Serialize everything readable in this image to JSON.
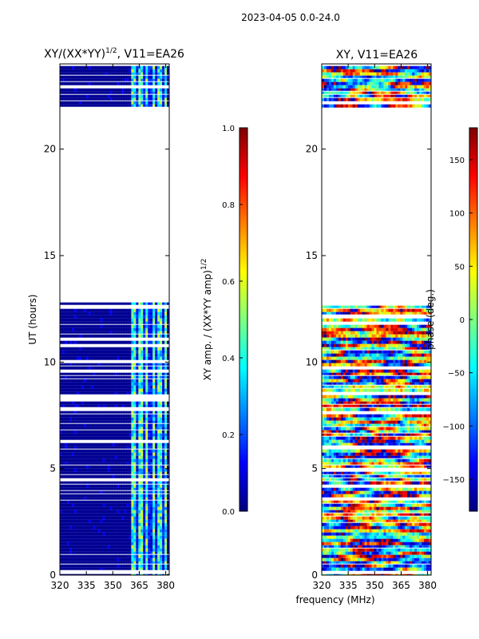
{
  "suptitle": "2023-04-05 0.0-24.0",
  "colormap": [
    "#00007f",
    "#0000ff",
    "#007fff",
    "#00ffff",
    "#7fff7f",
    "#ffff00",
    "#ff7f00",
    "#ff0000",
    "#7f0000"
  ],
  "chart_data": [
    {
      "type": "heatmap",
      "title_main": "XY/(XX*YY)",
      "title_sup": "1/2",
      "title_rest": ", V11=EA26",
      "xlabel": "",
      "ylabel": "UT (hours)",
      "xlim": [
        320,
        382
      ],
      "ylim": [
        0,
        24
      ],
      "xticks": [
        320,
        335,
        350,
        365,
        380
      ],
      "yticks": [
        0,
        5,
        10,
        15,
        20
      ],
      "colorbar": {
        "label": "XY amp. / (XX*YY amp)",
        "label_sup": "1/2",
        "range": [
          0.0,
          1.0
        ],
        "ticks": [
          0.0,
          0.2,
          0.4,
          0.6,
          0.8,
          1.0
        ],
        "tick_labels": [
          "0.0",
          "0.2",
          "0.4",
          "0.6",
          "0.8",
          "1.0"
        ]
      },
      "data_segments_hours": [
        [
          0.0,
          12.8
        ],
        [
          21.8,
          23.9
        ]
      ],
      "bright_band_mhz": [
        360,
        381
      ],
      "value_description": "mostly ~0.02 at 320-360 MHz, ~0.3-0.6 in 360-381 MHz band"
    },
    {
      "type": "heatmap",
      "title": "XY, V11=EA26",
      "xlabel": "frequency (MHz)",
      "ylabel": "",
      "xlim": [
        320,
        382
      ],
      "ylim": [
        0,
        24
      ],
      "xticks": [
        320,
        335,
        350,
        365,
        380
      ],
      "yticks": [
        0,
        5,
        10,
        15,
        20
      ],
      "colorbar": {
        "label": "phase (deg.)",
        "range": [
          -180,
          180
        ],
        "ticks": [
          -150,
          -100,
          -50,
          0,
          50,
          100,
          150
        ],
        "tick_labels": [
          "−150",
          "−100",
          "−50",
          "0",
          "50",
          "100",
          "150"
        ]
      },
      "data_segments_hours": [
        [
          0.0,
          12.8
        ],
        [
          21.8,
          23.9
        ]
      ],
      "value_description": "phase spread across full range -180 to 180 deg"
    }
  ]
}
